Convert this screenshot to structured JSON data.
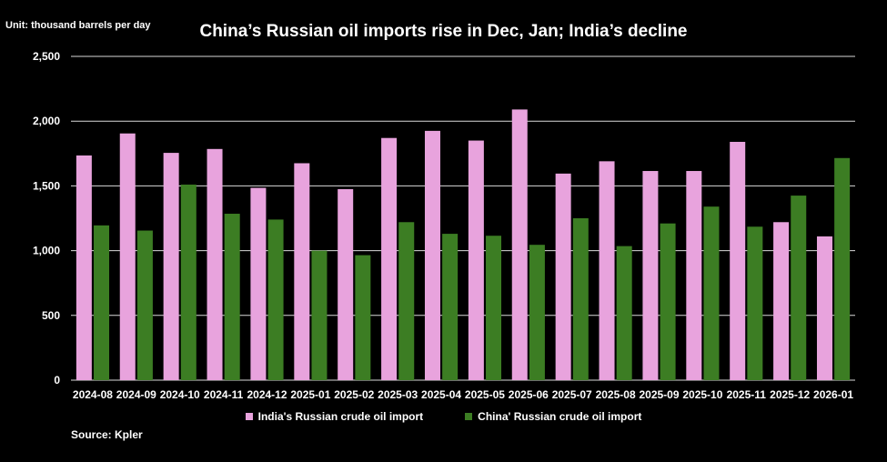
{
  "chart_data": {
    "type": "bar",
    "title": "China’s Russian oil imports rise in Dec, Jan; India’s decline",
    "unit_label": "Unit: thousand barrels per day",
    "source": "Source: Kpler",
    "ylim": [
      0,
      2500
    ],
    "yticks": [
      "0",
      "500",
      "1,000",
      "1,500",
      "2,000",
      "2,500"
    ],
    "ytick_values": [
      0,
      500,
      1000,
      1500,
      2000,
      2500
    ],
    "grid": true,
    "legend_position": "bottom",
    "categories": [
      "2024-08",
      "2024-09",
      "2024-10",
      "2024-11",
      "2024-12",
      "2025-01",
      "2025-02",
      "2025-03",
      "2025-04",
      "2025-05",
      "2025-06",
      "2025-07",
      "2025-08",
      "2025-09",
      "2025-10",
      "2025-11",
      "2025-12",
      "2026-01"
    ],
    "series": [
      {
        "name": "India's Russian crude oil import",
        "color": "#e8a3dd",
        "values": [
          1735,
          1905,
          1755,
          1785,
          1485,
          1675,
          1475,
          1870,
          1925,
          1850,
          2090,
          1595,
          1690,
          1615,
          1615,
          1840,
          1220,
          1110
        ]
      },
      {
        "name": "China' Russian crude oil import",
        "color": "#3c7d23",
        "values": [
          1195,
          1155,
          1510,
          1285,
          1240,
          1000,
          965,
          1220,
          1130,
          1115,
          1045,
          1250,
          1035,
          1210,
          1340,
          1185,
          1425,
          1715
        ]
      }
    ]
  }
}
